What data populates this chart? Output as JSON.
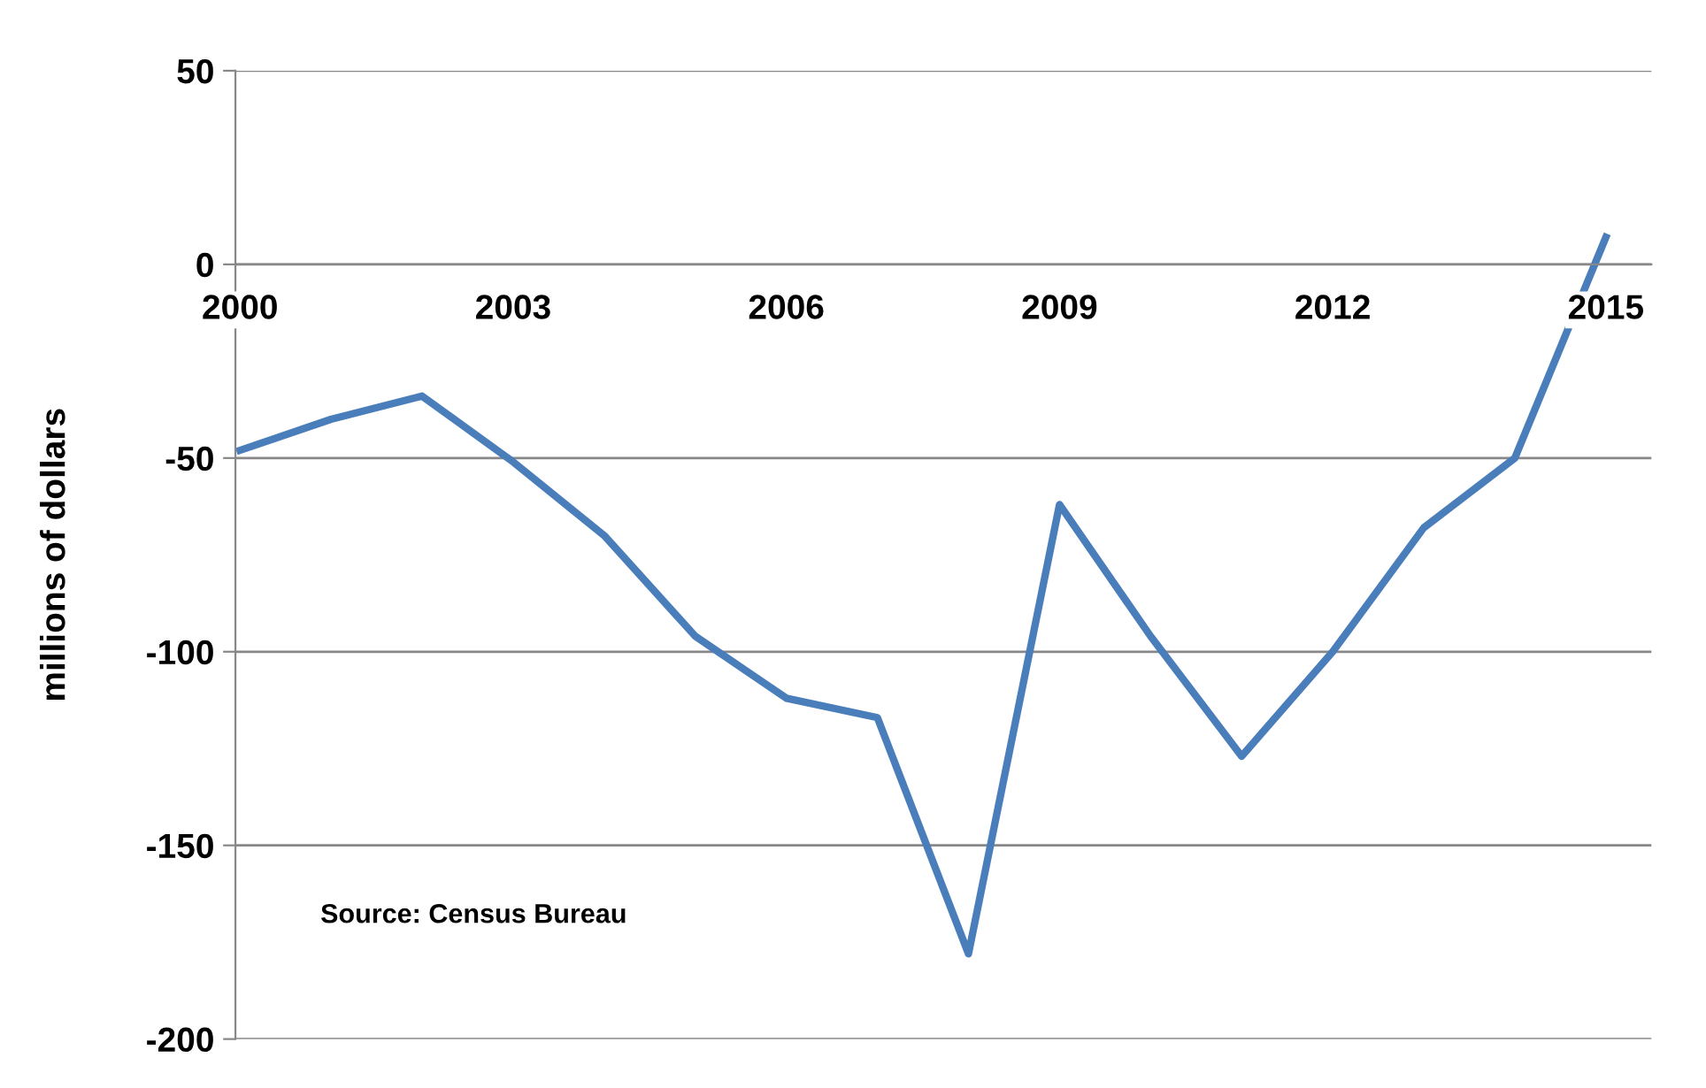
{
  "chart_data": {
    "type": "line",
    "ylabel": "millions of dollars",
    "categories": [
      "2000",
      null,
      null,
      "2003",
      null,
      null,
      "2006",
      null,
      null,
      "2009",
      null,
      null,
      "2012",
      null,
      null,
      "2015"
    ],
    "series": [
      {
        "color": "#4a7ebb",
        "values": [
          -48,
          -40,
          -34,
          -51,
          -70,
          -96,
          -112,
          -117,
          -178,
          -62,
          -96,
          -127,
          -100,
          -68,
          -50,
          7
        ]
      }
    ],
    "ylim": [
      -200,
      50
    ],
    "yticks": [
      -200,
      -150,
      -100,
      -50,
      0,
      50
    ],
    "grid": "y",
    "marker": "none",
    "line_style": "solid",
    "annotations": [
      "Source: Census Bureau"
    ]
  }
}
